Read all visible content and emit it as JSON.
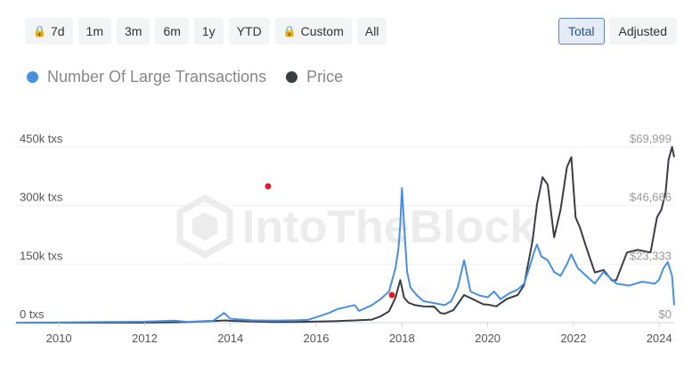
{
  "range_buttons": [
    {
      "label": "7d",
      "locked": true
    },
    {
      "label": "1m",
      "locked": false
    },
    {
      "label": "3m",
      "locked": false
    },
    {
      "label": "6m",
      "locked": false
    },
    {
      "label": "1y",
      "locked": false
    },
    {
      "label": "YTD",
      "locked": false
    },
    {
      "label": "Custom",
      "locked": true
    },
    {
      "label": "All",
      "locked": false
    }
  ],
  "lock_glyph": "🔒",
  "mode_buttons": {
    "total": "Total",
    "adjusted": "Adjusted",
    "active": "total"
  },
  "legend": [
    {
      "label": "Number Of Large Transactions",
      "color": "#4a90e2"
    },
    {
      "label": "Price",
      "color": "#3a3d42"
    }
  ],
  "watermark": "IntoTheBlock",
  "chart_data": {
    "type": "line",
    "x_ticks": [
      "2010",
      "2012",
      "2014",
      "2016",
      "2018",
      "2020",
      "2022",
      "2024"
    ],
    "y_left_ticks": [
      "0 txs",
      "150k txs",
      "300k txs",
      "450k txs"
    ],
    "y_right_ticks": [
      "$0",
      "$23,333",
      "$46,666",
      "$69,999"
    ],
    "ylim_left": [
      0,
      450000
    ],
    "ylim_right": [
      0,
      69999
    ],
    "xlim": [
      2009.0,
      2024.35
    ],
    "series": [
      {
        "name": "Number Of Large Transactions",
        "axis": "left",
        "color": "#4a90e2",
        "x": [
          2009.0,
          2010.0,
          2011.0,
          2012.0,
          2012.7,
          2013.0,
          2013.6,
          2013.85,
          2014.0,
          2014.5,
          2015.0,
          2015.5,
          2015.8,
          2016.0,
          2016.3,
          2016.5,
          2016.9,
          2017.0,
          2017.3,
          2017.5,
          2017.7,
          2017.85,
          2017.92,
          2017.96,
          2018.0,
          2018.05,
          2018.12,
          2018.2,
          2018.35,
          2018.5,
          2018.75,
          2019.0,
          2019.15,
          2019.3,
          2019.45,
          2019.6,
          2019.8,
          2020.0,
          2020.15,
          2020.3,
          2020.5,
          2020.7,
          2020.85,
          2021.0,
          2021.08,
          2021.15,
          2021.25,
          2021.4,
          2021.55,
          2021.7,
          2021.85,
          2021.95,
          2022.1,
          2022.3,
          2022.5,
          2022.7,
          2022.9,
          2023.0,
          2023.3,
          2023.6,
          2023.9,
          2024.0,
          2024.1,
          2024.2,
          2024.3,
          2024.35
        ],
        "y": [
          0,
          500,
          1500,
          2500,
          5000,
          2000,
          5000,
          25000,
          10000,
          6000,
          5000,
          6000,
          7000,
          14000,
          25000,
          35000,
          45000,
          30000,
          45000,
          60000,
          80000,
          140000,
          190000,
          250000,
          345000,
          250000,
          130000,
          90000,
          70000,
          55000,
          50000,
          45000,
          55000,
          90000,
          160000,
          80000,
          70000,
          65000,
          80000,
          60000,
          75000,
          85000,
          100000,
          150000,
          180000,
          200000,
          170000,
          160000,
          130000,
          120000,
          150000,
          175000,
          140000,
          120000,
          100000,
          130000,
          110000,
          100000,
          95000,
          105000,
          100000,
          110000,
          140000,
          155000,
          120000,
          45000
        ]
      },
      {
        "name": "Price",
        "axis": "right",
        "color": "#3a3d42",
        "x": [
          2009.0,
          2010.0,
          2011.0,
          2012.0,
          2013.0,
          2013.9,
          2014.0,
          2014.5,
          2015.0,
          2015.5,
          2016.0,
          2016.5,
          2016.9,
          2017.0,
          2017.3,
          2017.5,
          2017.7,
          2017.85,
          2017.96,
          2018.0,
          2018.05,
          2018.15,
          2018.3,
          2018.5,
          2018.75,
          2018.9,
          2019.0,
          2019.2,
          2019.45,
          2019.7,
          2019.9,
          2020.0,
          2020.2,
          2020.45,
          2020.7,
          2020.85,
          2020.95,
          2021.05,
          2021.15,
          2021.28,
          2021.4,
          2021.55,
          2021.7,
          2021.85,
          2021.95,
          2022.05,
          2022.15,
          2022.3,
          2022.5,
          2022.7,
          2022.9,
          2023.0,
          2023.25,
          2023.5,
          2023.8,
          2023.95,
          2024.05,
          2024.15,
          2024.22,
          2024.3,
          2024.35
        ],
        "y": [
          0,
          0,
          10,
          10,
          200,
          900,
          700,
          500,
          300,
          250,
          430,
          650,
          900,
          1000,
          1200,
          2500,
          4500,
          10000,
          17000,
          14000,
          10000,
          8000,
          7000,
          6500,
          6400,
          3800,
          3600,
          5000,
          11000,
          9000,
          7300,
          7200,
          6500,
          9500,
          11000,
          15000,
          24000,
          33000,
          47000,
          58000,
          55000,
          34000,
          45000,
          62000,
          66000,
          42000,
          38000,
          30000,
          20000,
          21000,
          16800,
          17000,
          28000,
          29000,
          28000,
          42000,
          45000,
          52000,
          65000,
          70000,
          66000
        ]
      }
    ]
  }
}
